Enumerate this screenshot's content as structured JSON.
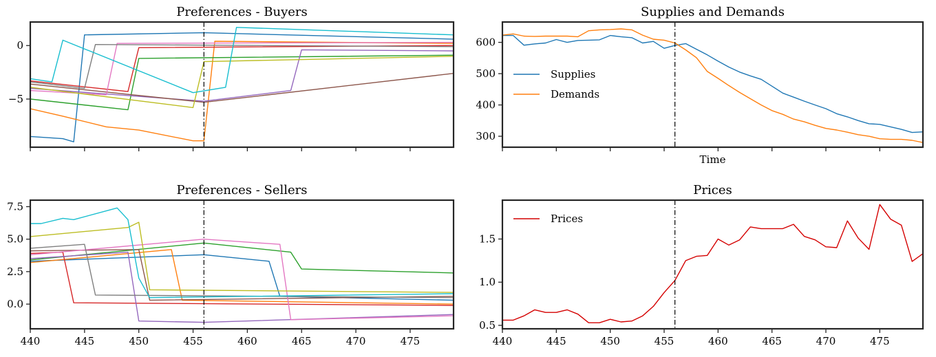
{
  "chart_data": [
    {
      "id": "buyers",
      "type": "line",
      "title": "Preferences - Buyers",
      "xlim": [
        440,
        479
      ],
      "ylim": [
        -9.5,
        2.2
      ],
      "xticks": [
        440,
        445,
        450,
        455,
        460,
        465,
        470,
        475
      ],
      "xtick_labels_shown": false,
      "yticks": [
        0,
        -5
      ],
      "ytick_labels": [
        "0",
        "−5"
      ],
      "vline_x": 456,
      "series": [
        {
          "color": "#1f77b4",
          "x": [
            440,
            443,
            444,
            445,
            456,
            479
          ],
          "y": [
            -8.5,
            -8.7,
            -9.0,
            1.0,
            1.2,
            0.6
          ]
        },
        {
          "color": "#ff7f0e",
          "x": [
            440,
            443,
            447,
            450,
            455,
            456,
            457,
            479
          ],
          "y": [
            -5.9,
            -6.6,
            -7.6,
            -7.9,
            -8.9,
            -8.9,
            0.4,
            0.2
          ]
        },
        {
          "color": "#2ca02c",
          "x": [
            440,
            449,
            450,
            479
          ],
          "y": [
            -5.0,
            -6.0,
            -1.2,
            -0.9
          ]
        },
        {
          "color": "#d62728",
          "x": [
            440,
            449,
            450,
            479
          ],
          "y": [
            -3.3,
            -4.3,
            -0.2,
            0.0
          ]
        },
        {
          "color": "#9467bd",
          "x": [
            440,
            456,
            464,
            465,
            479
          ],
          "y": [
            -4.0,
            -5.2,
            -4.2,
            -0.4,
            -0.5
          ]
        },
        {
          "color": "#8c564b",
          "x": [
            440,
            456,
            479
          ],
          "y": [
            -3.6,
            -5.3,
            -2.6
          ]
        },
        {
          "color": "#e377c2",
          "x": [
            440,
            447,
            448,
            479
          ],
          "y": [
            -4.2,
            -4.6,
            0.2,
            0.3
          ]
        },
        {
          "color": "#7f7f7f",
          "x": [
            440,
            445,
            446,
            479
          ],
          "y": [
            -3.4,
            -4.0,
            0.1,
            -0.1
          ]
        },
        {
          "color": "#bcbd22",
          "x": [
            440,
            455,
            456,
            479
          ],
          "y": [
            -3.9,
            -5.8,
            -1.5,
            -1.0
          ]
        },
        {
          "color": "#17becf",
          "x": [
            440,
            442,
            443,
            455,
            458,
            459,
            479
          ],
          "y": [
            -3.1,
            -3.4,
            0.5,
            -4.4,
            -3.9,
            1.7,
            1.0
          ]
        }
      ]
    },
    {
      "id": "sellers",
      "type": "line",
      "title": "Preferences - Sellers",
      "xlim": [
        440,
        479
      ],
      "ylim": [
        -1.9,
        8.0
      ],
      "xticks": [
        440,
        445,
        450,
        455,
        460,
        465,
        470,
        475
      ],
      "xtick_labels": [
        "440",
        "445",
        "450",
        "455",
        "460",
        "465",
        "470",
        "475"
      ],
      "yticks": [
        7.5,
        5.0,
        2.5,
        0.0
      ],
      "ytick_labels": [
        "7.5",
        "5.0",
        "2.5",
        "0.0"
      ],
      "vline_x": 456,
      "series": [
        {
          "color": "#1f77b4",
          "x": [
            440,
            456,
            462,
            463,
            479
          ],
          "y": [
            3.3,
            3.8,
            3.3,
            0.6,
            0.3
          ]
        },
        {
          "color": "#ff7f0e",
          "x": [
            440,
            453,
            454,
            479
          ],
          "y": [
            3.2,
            4.2,
            0.3,
            0.0
          ]
        },
        {
          "color": "#2ca02c",
          "x": [
            440,
            456,
            464,
            465,
            479
          ],
          "y": [
            3.4,
            4.7,
            4.0,
            2.7,
            2.4
          ]
        },
        {
          "color": "#d62728",
          "x": [
            440,
            443,
            444,
            479
          ],
          "y": [
            3.9,
            4.0,
            0.1,
            -0.1
          ]
        },
        {
          "color": "#9467bd",
          "x": [
            440,
            449,
            450,
            456,
            479
          ],
          "y": [
            3.5,
            4.0,
            -1.3,
            -1.4,
            -0.8
          ]
        },
        {
          "color": "#8c564b",
          "x": [
            440,
            450,
            451,
            479
          ],
          "y": [
            4.1,
            4.2,
            0.3,
            0.6
          ]
        },
        {
          "color": "#e377c2",
          "x": [
            440,
            456,
            463,
            464,
            479
          ],
          "y": [
            3.8,
            5.0,
            4.6,
            -1.2,
            -0.9
          ]
        },
        {
          "color": "#7f7f7f",
          "x": [
            440,
            445,
            446,
            479
          ],
          "y": [
            4.3,
            4.6,
            0.7,
            0.5
          ]
        },
        {
          "color": "#bcbd22",
          "x": [
            440,
            449,
            450,
            451,
            479
          ],
          "y": [
            5.2,
            5.9,
            6.3,
            1.1,
            0.9
          ]
        },
        {
          "color": "#17becf",
          "x": [
            440,
            441,
            443,
            444,
            448,
            449,
            450,
            451,
            479
          ],
          "y": [
            6.2,
            6.2,
            6.6,
            6.5,
            7.4,
            6.5,
            2.0,
            0.5,
            0.8
          ]
        }
      ]
    },
    {
      "id": "supplies",
      "type": "line",
      "title": "Supplies and Demands",
      "xlim": [
        440,
        479
      ],
      "ylim": [
        265,
        665
      ],
      "xlabel": "Time",
      "xticks": [
        440,
        445,
        450,
        455,
        460,
        465,
        470,
        475
      ],
      "xtick_labels_shown": false,
      "yticks": [
        600,
        500,
        400,
        300
      ],
      "ytick_labels": [
        "600",
        "500",
        "400",
        "300"
      ],
      "vline_x": 456,
      "legend_position": "upper-left",
      "series": [
        {
          "name": "Supplies",
          "color": "#1f77b4",
          "x": [
            440,
            441,
            442,
            443,
            444,
            445,
            446,
            447,
            448,
            449,
            450,
            451,
            452,
            453,
            454,
            455,
            456,
            457,
            458,
            459,
            460,
            461,
            462,
            463,
            464,
            465,
            466,
            467,
            468,
            469,
            470,
            471,
            472,
            473,
            474,
            475,
            476,
            477,
            478,
            479
          ],
          "y": [
            622,
            622,
            591,
            595,
            598,
            609,
            600,
            606,
            607,
            608,
            622,
            618,
            615,
            598,
            603,
            581,
            590,
            596,
            578,
            560,
            540,
            521,
            505,
            493,
            482,
            460,
            438,
            425,
            412,
            400,
            388,
            372,
            362,
            350,
            340,
            338,
            330,
            322,
            312,
            314
          ]
        },
        {
          "name": "Demands",
          "color": "#ff7f0e",
          "x": [
            440,
            441,
            442,
            443,
            444,
            445,
            446,
            447,
            448,
            449,
            450,
            451,
            452,
            453,
            454,
            455,
            456,
            457,
            458,
            459,
            460,
            461,
            462,
            463,
            464,
            465,
            466,
            467,
            468,
            469,
            470,
            471,
            472,
            473,
            474,
            475,
            476,
            477,
            478,
            479
          ],
          "y": [
            623,
            627,
            620,
            619,
            620,
            620,
            620,
            618,
            637,
            640,
            641,
            643,
            640,
            623,
            610,
            607,
            598,
            576,
            551,
            507,
            485,
            462,
            440,
            420,
            400,
            382,
            370,
            355,
            346,
            335,
            325,
            320,
            313,
            305,
            300,
            292,
            290,
            290,
            287,
            280
          ]
        }
      ]
    },
    {
      "id": "prices",
      "type": "line",
      "title": "Prices",
      "xlim": [
        440,
        479
      ],
      "ylim": [
        0.46,
        1.95
      ],
      "xticks": [
        440,
        445,
        450,
        455,
        460,
        465,
        470,
        475
      ],
      "xtick_labels": [
        "440",
        "445",
        "450",
        "455",
        "460",
        "465",
        "470",
        "475"
      ],
      "yticks": [
        1.5,
        1.0,
        0.5
      ],
      "ytick_labels": [
        "1.5",
        "1.0",
        "0.5"
      ],
      "vline_x": 456,
      "legend_position": "upper-left",
      "series": [
        {
          "name": "Prices",
          "color": "#d40000",
          "x": [
            440,
            441,
            442,
            443,
            444,
            445,
            446,
            447,
            448,
            449,
            450,
            451,
            452,
            453,
            454,
            455,
            456,
            457,
            458,
            459,
            460,
            461,
            462,
            463,
            464,
            465,
            466,
            467,
            468,
            469,
            470,
            471,
            472,
            473,
            474,
            475,
            476,
            477,
            478,
            479
          ],
          "y": [
            0.56,
            0.56,
            0.61,
            0.68,
            0.65,
            0.65,
            0.68,
            0.63,
            0.53,
            0.53,
            0.57,
            0.54,
            0.55,
            0.61,
            0.72,
            0.88,
            1.02,
            1.25,
            1.3,
            1.31,
            1.5,
            1.43,
            1.49,
            1.64,
            1.62,
            1.62,
            1.62,
            1.67,
            1.53,
            1.49,
            1.41,
            1.4,
            1.71,
            1.51,
            1.38,
            1.9,
            1.73,
            1.66,
            1.24,
            1.33
          ]
        }
      ]
    }
  ]
}
